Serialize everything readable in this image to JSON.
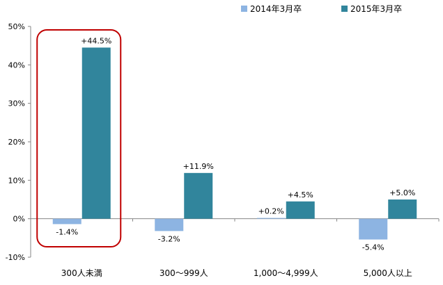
{
  "chart_data": {
    "type": "bar",
    "title": "",
    "xlabel": "",
    "ylabel": "",
    "categories": [
      "300人未満",
      "300～999人",
      "1,000～4,999人",
      "5,000人以上"
    ],
    "series": [
      {
        "name": "2014年3月卒",
        "color": "#8DB4E2",
        "values": [
          -1.4,
          -3.2,
          0.2,
          -5.4
        ],
        "labels": [
          "-1.4%",
          "-3.2%",
          "+0.2%",
          "-5.4%"
        ]
      },
      {
        "name": "2015年3月卒",
        "color": "#31859C",
        "values": [
          44.5,
          11.9,
          4.5,
          5.0
        ],
        "labels": [
          "+44.5%",
          "+11.9%",
          "+4.5%",
          "+5.0%"
        ]
      }
    ],
    "ylim": [
      -10,
      50
    ],
    "yticks": [
      -10,
      0,
      10,
      20,
      30,
      40,
      50
    ],
    "ytick_labels": [
      "-10%",
      "0%",
      "10%",
      "20%",
      "30%",
      "40%",
      "50%"
    ],
    "grid": false,
    "legend_position": "top-right",
    "highlight": {
      "category_index": 0,
      "shape": "rounded-rectangle",
      "color": "#C00000"
    }
  }
}
